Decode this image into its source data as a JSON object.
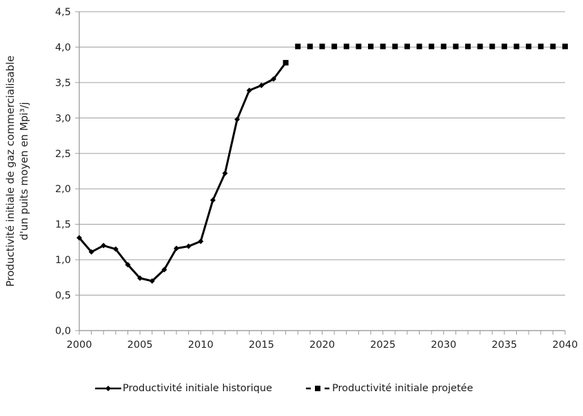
{
  "chart_data": {
    "type": "line",
    "title": "",
    "xlabel": "",
    "ylabel": "Productivité initiale de gaz commercialisable d'un puits moyen en Mpi³/j",
    "ylabel_lines": [
      "Productivité initiale de gaz commercialisable",
      "d'un puits moyen en Mpi³/j"
    ],
    "xlim": [
      2000,
      2040
    ],
    "ylim": [
      0,
      4.5
    ],
    "x_ticks": [
      "2000",
      "2005",
      "2010",
      "2015",
      "2020",
      "2025",
      "2030",
      "2035",
      "2040"
    ],
    "y_ticks": [
      "0,0",
      "0,5",
      "1,0",
      "1,5",
      "2,0",
      "2,5",
      "3,0",
      "3,5",
      "4,0",
      "4,5"
    ],
    "grid": "horizontal",
    "legend_position": "bottom",
    "series": [
      {
        "name": "Productivité initiale historique",
        "style": "solid-diamond",
        "color": "#000000",
        "x": [
          2000,
          2001,
          2002,
          2003,
          2004,
          2005,
          2006,
          2007,
          2008,
          2009,
          2010,
          2011,
          2012,
          2013,
          2014,
          2015,
          2016,
          2017
        ],
        "values": [
          1.31,
          1.11,
          1.2,
          1.15,
          0.93,
          0.74,
          0.7,
          0.86,
          1.16,
          1.19,
          1.26,
          1.84,
          2.22,
          2.98,
          3.39,
          3.46,
          3.55,
          3.78
        ]
      },
      {
        "name": "Productivité initiale projetée",
        "style": "dashed-square",
        "color": "#000000",
        "x": [
          2018,
          2019,
          2020,
          2021,
          2022,
          2023,
          2024,
          2025,
          2026,
          2027,
          2028,
          2029,
          2030,
          2031,
          2032,
          2033,
          2034,
          2035,
          2036,
          2037,
          2038,
          2039,
          2040
        ],
        "values": [
          4.01,
          4.01,
          4.01,
          4.01,
          4.01,
          4.01,
          4.01,
          4.01,
          4.01,
          4.01,
          4.01,
          4.01,
          4.01,
          4.01,
          4.01,
          4.01,
          4.01,
          4.01,
          4.01,
          4.01,
          4.01,
          4.01,
          4.01
        ]
      }
    ]
  },
  "legend": {
    "historic_label": "Productivité initiale historique",
    "projected_label": "Productivité initiale projetée"
  },
  "colors": {
    "grid": "#b3b3b3",
    "axis": "#999999",
    "line": "#000000"
  }
}
